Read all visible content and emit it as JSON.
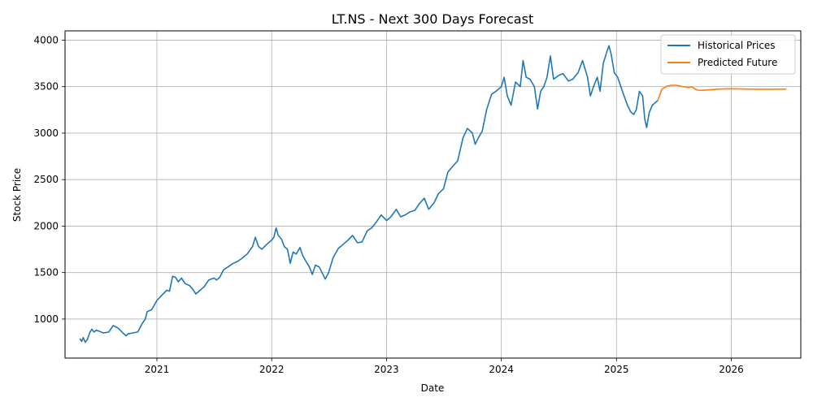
{
  "chart_data": {
    "type": "line",
    "title": "LT.NS - Next 300 Days Forecast",
    "xlabel": "Date",
    "ylabel": "Stock Price",
    "x_ticks": [
      "2021",
      "2022",
      "2023",
      "2024",
      "2025",
      "2026"
    ],
    "y_ticks": [
      1000,
      1500,
      2000,
      2500,
      3000,
      3500,
      4000
    ],
    "xlim": [
      "2020-03-15",
      "2026-08-10"
    ],
    "ylim": [
      580,
      4100
    ],
    "grid": true,
    "legend_position": "top-right",
    "series": [
      {
        "name": "Historical Prices",
        "color": "#1f77b4",
        "points": [
          [
            "2020-05-01",
            790
          ],
          [
            "2020-05-07",
            760
          ],
          [
            "2020-05-12",
            800
          ],
          [
            "2020-05-18",
            750
          ],
          [
            "2020-05-25",
            780
          ],
          [
            "2020-06-01",
            850
          ],
          [
            "2020-06-08",
            890
          ],
          [
            "2020-06-15",
            860
          ],
          [
            "2020-06-22",
            880
          ],
          [
            "2020-07-01",
            870
          ],
          [
            "2020-07-15",
            850
          ],
          [
            "2020-08-01",
            860
          ],
          [
            "2020-08-15",
            930
          ],
          [
            "2020-09-01",
            900
          ],
          [
            "2020-09-15",
            850
          ],
          [
            "2020-09-25",
            820
          ],
          [
            "2020-10-01",
            840
          ],
          [
            "2020-10-15",
            850
          ],
          [
            "2020-11-01",
            860
          ],
          [
            "2020-11-15",
            950
          ],
          [
            "2020-11-25",
            1000
          ],
          [
            "2020-12-01",
            1080
          ],
          [
            "2020-12-15",
            1100
          ],
          [
            "2021-01-01",
            1200
          ],
          [
            "2021-01-15",
            1250
          ],
          [
            "2021-02-01",
            1310
          ],
          [
            "2021-02-10",
            1300
          ],
          [
            "2021-02-20",
            1460
          ],
          [
            "2021-03-01",
            1450
          ],
          [
            "2021-03-10",
            1400
          ],
          [
            "2021-03-20",
            1440
          ],
          [
            "2021-04-01",
            1380
          ],
          [
            "2021-04-15",
            1360
          ],
          [
            "2021-04-25",
            1320
          ],
          [
            "2021-05-05",
            1270
          ],
          [
            "2021-05-15",
            1300
          ],
          [
            "2021-06-01",
            1350
          ],
          [
            "2021-06-15",
            1420
          ],
          [
            "2021-07-01",
            1440
          ],
          [
            "2021-07-10",
            1420
          ],
          [
            "2021-07-20",
            1450
          ],
          [
            "2021-08-01",
            1530
          ],
          [
            "2021-08-15",
            1560
          ],
          [
            "2021-09-01",
            1600
          ],
          [
            "2021-09-15",
            1620
          ],
          [
            "2021-10-01",
            1660
          ],
          [
            "2021-10-15",
            1700
          ],
          [
            "2021-11-01",
            1780
          ],
          [
            "2021-11-10",
            1880
          ],
          [
            "2021-11-20",
            1780
          ],
          [
            "2021-12-01",
            1750
          ],
          [
            "2021-12-15",
            1800
          ],
          [
            "2022-01-01",
            1850
          ],
          [
            "2022-01-08",
            1880
          ],
          [
            "2022-01-15",
            1980
          ],
          [
            "2022-01-22",
            1900
          ],
          [
            "2022-02-01",
            1860
          ],
          [
            "2022-02-10",
            1780
          ],
          [
            "2022-02-20",
            1750
          ],
          [
            "2022-03-01",
            1600
          ],
          [
            "2022-03-10",
            1720
          ],
          [
            "2022-03-20",
            1700
          ],
          [
            "2022-04-01",
            1770
          ],
          [
            "2022-04-10",
            1680
          ],
          [
            "2022-04-20",
            1620
          ],
          [
            "2022-05-01",
            1560
          ],
          [
            "2022-05-10",
            1480
          ],
          [
            "2022-05-20",
            1580
          ],
          [
            "2022-06-01",
            1560
          ],
          [
            "2022-06-10",
            1500
          ],
          [
            "2022-06-20",
            1430
          ],
          [
            "2022-07-01",
            1500
          ],
          [
            "2022-07-15",
            1660
          ],
          [
            "2022-08-01",
            1760
          ],
          [
            "2022-08-15",
            1800
          ],
          [
            "2022-09-01",
            1850
          ],
          [
            "2022-09-15",
            1900
          ],
          [
            "2022-10-01",
            1820
          ],
          [
            "2022-10-15",
            1830
          ],
          [
            "2022-11-01",
            1950
          ],
          [
            "2022-11-15",
            1980
          ],
          [
            "2022-12-01",
            2050
          ],
          [
            "2022-12-15",
            2120
          ],
          [
            "2023-01-01",
            2060
          ],
          [
            "2023-01-15",
            2100
          ],
          [
            "2023-02-01",
            2180
          ],
          [
            "2023-02-15",
            2100
          ],
          [
            "2023-03-01",
            2120
          ],
          [
            "2023-03-15",
            2150
          ],
          [
            "2023-04-01",
            2170
          ],
          [
            "2023-04-15",
            2240
          ],
          [
            "2023-05-01",
            2300
          ],
          [
            "2023-05-15",
            2180
          ],
          [
            "2023-06-01",
            2250
          ],
          [
            "2023-06-15",
            2350
          ],
          [
            "2023-07-01",
            2400
          ],
          [
            "2023-07-15",
            2580
          ],
          [
            "2023-08-01",
            2650
          ],
          [
            "2023-08-15",
            2700
          ],
          [
            "2023-09-01",
            2950
          ],
          [
            "2023-09-15",
            3050
          ],
          [
            "2023-10-01",
            3000
          ],
          [
            "2023-10-10",
            2880
          ],
          [
            "2023-10-20",
            2950
          ],
          [
            "2023-11-01",
            3020
          ],
          [
            "2023-11-15",
            3250
          ],
          [
            "2023-12-01",
            3420
          ],
          [
            "2023-12-15",
            3450
          ],
          [
            "2024-01-01",
            3500
          ],
          [
            "2024-01-10",
            3600
          ],
          [
            "2024-01-20",
            3400
          ],
          [
            "2024-02-01",
            3300
          ],
          [
            "2024-02-15",
            3550
          ],
          [
            "2024-03-01",
            3500
          ],
          [
            "2024-03-10",
            3780
          ],
          [
            "2024-03-20",
            3600
          ],
          [
            "2024-04-01",
            3580
          ],
          [
            "2024-04-15",
            3500
          ],
          [
            "2024-04-25",
            3260
          ],
          [
            "2024-05-05",
            3450
          ],
          [
            "2024-05-15",
            3500
          ],
          [
            "2024-05-25",
            3600
          ],
          [
            "2024-06-05",
            3830
          ],
          [
            "2024-06-15",
            3580
          ],
          [
            "2024-07-01",
            3620
          ],
          [
            "2024-07-15",
            3640
          ],
          [
            "2024-08-01",
            3560
          ],
          [
            "2024-08-15",
            3580
          ],
          [
            "2024-09-01",
            3650
          ],
          [
            "2024-09-15",
            3780
          ],
          [
            "2024-10-01",
            3600
          ],
          [
            "2024-10-10",
            3400
          ],
          [
            "2024-10-20",
            3500
          ],
          [
            "2024-11-01",
            3600
          ],
          [
            "2024-11-10",
            3450
          ],
          [
            "2024-11-20",
            3750
          ],
          [
            "2024-12-01",
            3870
          ],
          [
            "2024-12-08",
            3940
          ],
          [
            "2024-12-15",
            3850
          ],
          [
            "2024-12-25",
            3650
          ],
          [
            "2025-01-05",
            3600
          ],
          [
            "2025-01-15",
            3500
          ],
          [
            "2025-01-25",
            3400
          ],
          [
            "2025-02-05",
            3300
          ],
          [
            "2025-02-15",
            3230
          ],
          [
            "2025-02-25",
            3200
          ],
          [
            "2025-03-05",
            3250
          ],
          [
            "2025-03-15",
            3450
          ],
          [
            "2025-03-25",
            3400
          ],
          [
            "2025-04-01",
            3150
          ],
          [
            "2025-04-07",
            3060
          ],
          [
            "2025-04-15",
            3220
          ],
          [
            "2025-04-25",
            3300
          ],
          [
            "2025-05-05",
            3330
          ],
          [
            "2025-05-12",
            3350
          ]
        ]
      },
      {
        "name": "Predicted Future",
        "color": "#ff7f0e",
        "points": [
          [
            "2025-05-12",
            3350
          ],
          [
            "2025-05-25",
            3470
          ],
          [
            "2025-06-10",
            3505
          ],
          [
            "2025-06-25",
            3515
          ],
          [
            "2025-07-10",
            3515
          ],
          [
            "2025-07-25",
            3505
          ],
          [
            "2025-08-10",
            3495
          ],
          [
            "2025-08-20",
            3490
          ],
          [
            "2025-08-28",
            3500
          ],
          [
            "2025-09-05",
            3480
          ],
          [
            "2025-09-15",
            3462
          ],
          [
            "2025-10-01",
            3460
          ],
          [
            "2025-10-20",
            3465
          ],
          [
            "2025-11-10",
            3470
          ],
          [
            "2025-12-01",
            3475
          ],
          [
            "2026-01-01",
            3477
          ],
          [
            "2026-02-01",
            3475
          ],
          [
            "2026-03-01",
            3473
          ],
          [
            "2026-04-01",
            3472
          ],
          [
            "2026-05-01",
            3472
          ],
          [
            "2026-06-01",
            3473
          ],
          [
            "2026-06-25",
            3473
          ]
        ]
      }
    ]
  }
}
